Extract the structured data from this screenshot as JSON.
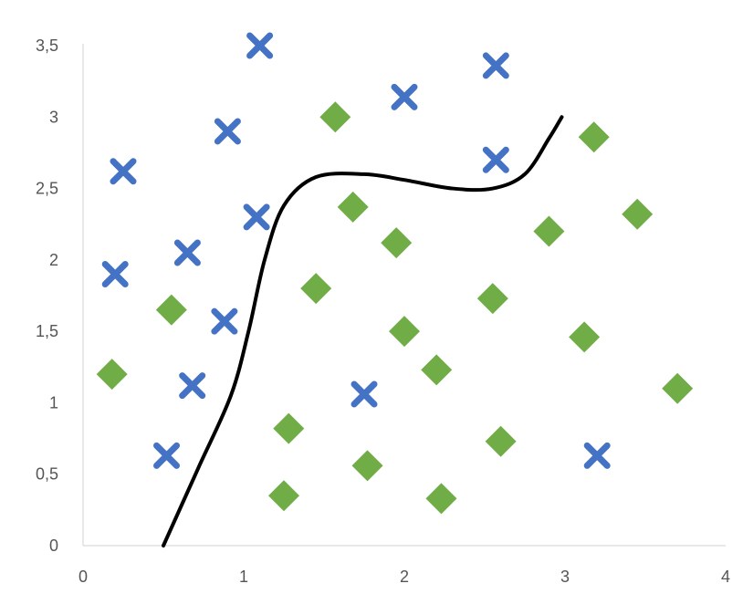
{
  "chart_data": {
    "type": "scatter",
    "title": "",
    "xlabel": "",
    "ylabel": "",
    "xlim": [
      0,
      4
    ],
    "ylim": [
      0,
      3.5
    ],
    "x_ticks": [
      "0",
      "1",
      "2",
      "3",
      "4"
    ],
    "y_ticks": [
      "0",
      "0,5",
      "1",
      "1,5",
      "2",
      "2,5",
      "3",
      "3,5"
    ],
    "grid": false,
    "legend": "none",
    "series": [
      {
        "marker": "x",
        "color": "#4472c4",
        "points": [
          [
            0.25,
            2.62
          ],
          [
            0.2,
            1.9
          ],
          [
            0.65,
            2.05
          ],
          [
            0.9,
            2.9
          ],
          [
            1.1,
            3.5
          ],
          [
            1.08,
            2.3
          ],
          [
            0.88,
            1.57
          ],
          [
            0.68,
            1.12
          ],
          [
            0.52,
            0.63
          ],
          [
            1.75,
            1.06
          ],
          [
            2.0,
            3.14
          ],
          [
            2.57,
            3.36
          ],
          [
            2.57,
            2.7
          ],
          [
            3.2,
            0.63
          ]
        ]
      },
      {
        "marker": "diamond",
        "color": "#70ad47",
        "points": [
          [
            0.18,
            1.2
          ],
          [
            0.55,
            1.65
          ],
          [
            1.57,
            3.0
          ],
          [
            1.68,
            2.37
          ],
          [
            1.95,
            2.12
          ],
          [
            1.45,
            1.8
          ],
          [
            2.0,
            1.5
          ],
          [
            2.2,
            1.23
          ],
          [
            2.55,
            1.73
          ],
          [
            2.9,
            2.2
          ],
          [
            3.18,
            2.86
          ],
          [
            3.45,
            2.32
          ],
          [
            3.12,
            1.46
          ],
          [
            3.7,
            1.1
          ],
          [
            1.28,
            0.82
          ],
          [
            1.77,
            0.56
          ],
          [
            1.25,
            0.35
          ],
          [
            2.23,
            0.33
          ],
          [
            2.6,
            0.73
          ]
        ]
      }
    ],
    "decision_boundary": {
      "color": "#000000",
      "points": [
        [
          0.5,
          0.0
        ],
        [
          0.72,
          0.55
        ],
        [
          0.92,
          1.05
        ],
        [
          1.03,
          1.5
        ],
        [
          1.13,
          2.0
        ],
        [
          1.25,
          2.38
        ],
        [
          1.45,
          2.58
        ],
        [
          1.75,
          2.6
        ],
        [
          2.0,
          2.56
        ],
        [
          2.3,
          2.5
        ],
        [
          2.55,
          2.5
        ],
        [
          2.75,
          2.6
        ],
        [
          2.9,
          2.85
        ],
        [
          2.98,
          3.0
        ]
      ]
    }
  }
}
